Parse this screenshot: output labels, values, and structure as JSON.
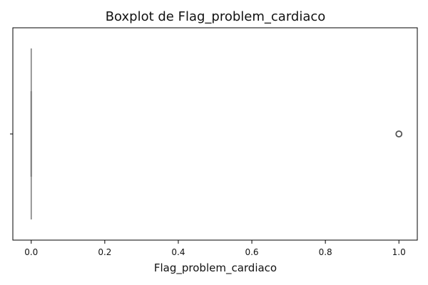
{
  "chart_data": {
    "type": "boxplot",
    "orientation": "horizontal",
    "title": "Boxplot de Flag_problem_cardiaco",
    "xlabel": "Flag_problem_cardiaco",
    "ylabel": "",
    "xlim": [
      -0.05,
      1.05
    ],
    "x_ticks": [
      0.0,
      0.2,
      0.4,
      0.6,
      0.8,
      1.0
    ],
    "x_tick_labels": [
      "0.0",
      "0.2",
      "0.4",
      "0.6",
      "0.8",
      "1.0"
    ],
    "grid": false,
    "legend": "none",
    "series": [
      {
        "whisker_low": 0.0,
        "q1": 0.0,
        "median": 0.0,
        "q3": 0.0,
        "whisker_high": 0.0,
        "outliers": [
          1.0
        ]
      }
    ],
    "colors": {
      "box_line": "#808080",
      "outlier_edge": "#555555",
      "axes": "#000000"
    }
  }
}
